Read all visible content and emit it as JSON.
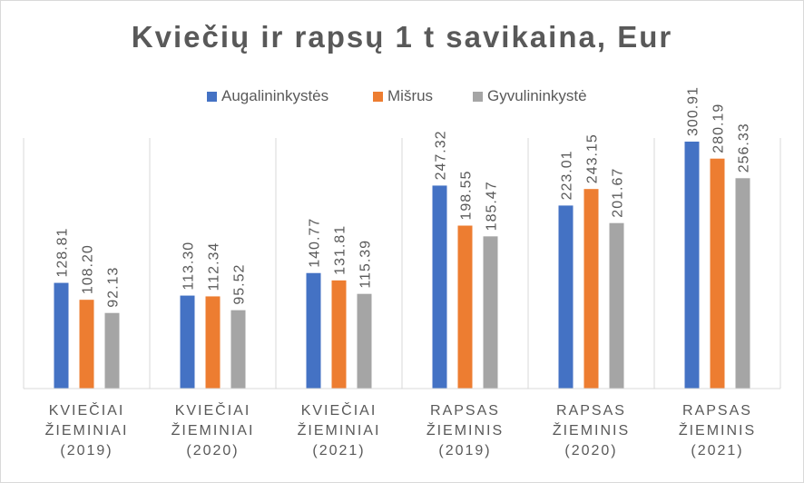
{
  "chart_data": {
    "type": "bar",
    "title": "Kviečių ir rapsų 1 t savikaina, Eur",
    "categories": [
      [
        "KVIEČIAI",
        "ŽIEMINIAI",
        "(2019)"
      ],
      [
        "KVIEČIAI",
        "ŽIEMINIAI",
        "(2020)"
      ],
      [
        "KVIEČIAI",
        "ŽIEMINIAI",
        "(2021)"
      ],
      [
        "RAPSAS",
        "ŽIEMINIS",
        "(2019)"
      ],
      [
        "RAPSAS",
        "ŽIEMINIS",
        "(2020)"
      ],
      [
        "RAPSAS",
        "ŽIEMINIS",
        "(2021)"
      ]
    ],
    "series": [
      {
        "name": "Augalininkystės",
        "color": "#4472c4",
        "values": [
          128.81,
          113.3,
          140.77,
          247.32,
          223.01,
          300.91
        ]
      },
      {
        "name": "Mišrus",
        "color": "#ed7d31",
        "values": [
          108.2,
          112.34,
          131.81,
          198.55,
          243.15,
          280.19
        ]
      },
      {
        "name": "Gyvulininkystė",
        "color": "#a5a5a5",
        "values": [
          92.13,
          95.52,
          115.39,
          185.47,
          201.67,
          256.33
        ]
      }
    ],
    "data_labels": [
      [
        "128.81",
        "113.30",
        "140.77",
        "247.32",
        "223.01",
        "300.91"
      ],
      [
        "108.20",
        "112.34",
        "131.81",
        "198.55",
        "243.15",
        "280.19"
      ],
      [
        "92.13",
        "95.52",
        "115.39",
        "185.47",
        "201.67",
        "256.33"
      ]
    ],
    "ylim": [
      0,
      335
    ],
    "legend_position": "top",
    "grid": "vertical category separators",
    "xlabel": "",
    "ylabel": ""
  }
}
